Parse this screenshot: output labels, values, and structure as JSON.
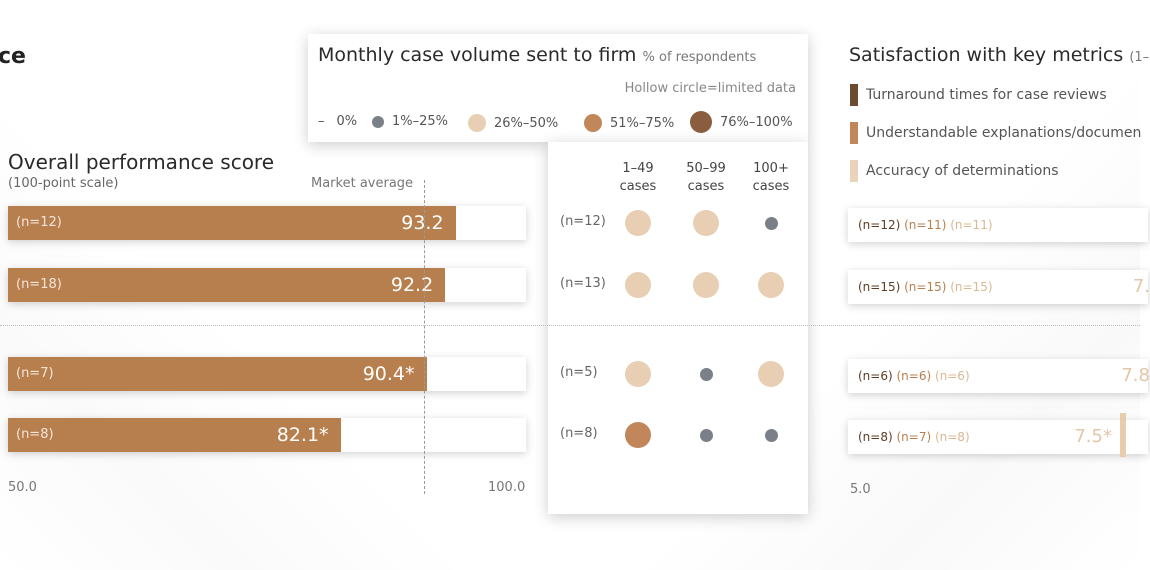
{
  "partial_title": "ce",
  "performance": {
    "title": "Overall performance score",
    "subtitle": "(100-point scale)",
    "market_label": "Market average",
    "axis_min": "50.0",
    "axis_max": "100.0"
  },
  "legend": {
    "title": "Monthly case volume sent to firm",
    "title_unit": "% of respondents",
    "note": "Hollow circle=limited data",
    "items": [
      {
        "label": "0%",
        "symbol": "–",
        "color": ""
      },
      {
        "label": "1%–25%",
        "color": "#7b8088"
      },
      {
        "label": "26%–50%",
        "color": "#e8cfb4"
      },
      {
        "label": "51%–75%",
        "color": "#c1875a"
      },
      {
        "label": "76%–100%",
        "color": "#8a5d3e"
      }
    ]
  },
  "case_columns": [
    {
      "l1": "1–49",
      "l2": "cases"
    },
    {
      "l1": "50–99",
      "l2": "cases"
    },
    {
      "l1": "100+",
      "l2": "cases"
    }
  ],
  "satisfaction": {
    "title": "Satisfaction with key metrics",
    "title_suffix": "(1–",
    "legend": [
      {
        "label": "Turnaround times for case reviews",
        "color": "#6e4a30"
      },
      {
        "label": "Understandable explanations/documen",
        "color": "#c1875a"
      },
      {
        "label": "Accuracy of determinations",
        "color": "#ead3ba"
      }
    ],
    "axis_min": "5.0"
  },
  "chart_data": [
    {
      "type": "bar",
      "title": "Overall performance score",
      "subtitle": "(100-point scale)",
      "xlim": [
        50,
        100
      ],
      "reference_line": {
        "label": "Market average",
        "value": 89.5
      },
      "rows": [
        {
          "n": "(n=12)",
          "value": 93.2,
          "label": "93.2"
        },
        {
          "n": "(n=18)",
          "value": 92.2,
          "label": "92.2"
        },
        {
          "n": "(n=7)",
          "value": 90.4,
          "label": "90.4*"
        },
        {
          "n": "(n=8)",
          "value": 82.1,
          "label": "82.1*"
        }
      ]
    },
    {
      "type": "table",
      "title": "Monthly case volume sent to firm",
      "columns": [
        "1–49 cases",
        "50–99 cases",
        "100+ cases"
      ],
      "rows": [
        {
          "n": "(n=12)",
          "categories": [
            "26%–50%",
            "26%–50%",
            "1%–25%"
          ]
        },
        {
          "n": "(n=13)",
          "categories": [
            "26%–50%",
            "26%–50%",
            "26%–50%"
          ]
        },
        {
          "n": "(n=5)",
          "categories": [
            "26%–50%",
            "1%–25%",
            "26%–50%"
          ]
        },
        {
          "n": "(n=8)",
          "categories": [
            "51%–75%",
            "1%–25%",
            "1%–25%"
          ]
        }
      ]
    },
    {
      "type": "bar",
      "title": "Satisfaction with key metrics",
      "rows": [
        {
          "n": [
            "(n=12)",
            "(n=11)",
            "(n=11)"
          ],
          "value_label": ""
        },
        {
          "n": [
            "(n=15)",
            "(n=15)",
            "(n=15)"
          ],
          "value_label": "7."
        },
        {
          "n": [
            "(n=6)",
            "(n=6)",
            "(n=6)"
          ],
          "value_label": "7.8"
        },
        {
          "n": [
            "(n=8)",
            "(n=7)",
            "(n=8)"
          ],
          "value_label": "7.5*"
        }
      ]
    }
  ]
}
